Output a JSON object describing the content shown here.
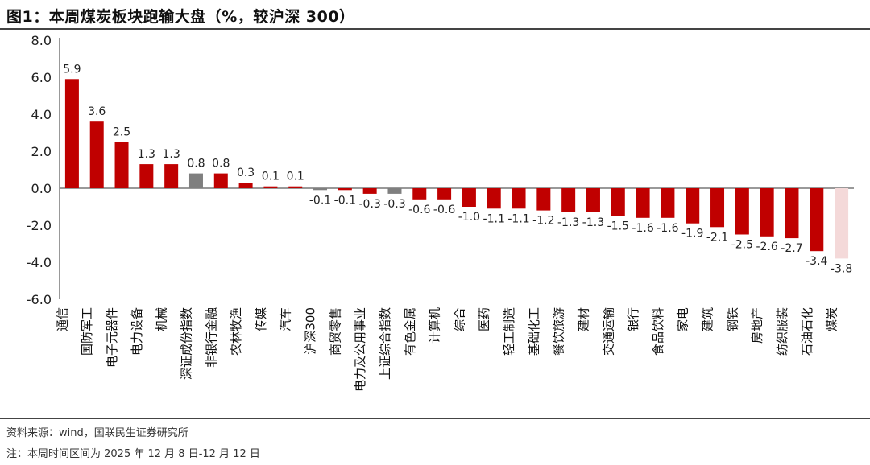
{
  "title": "图1：本周煤炭板块跑输大盘（%，较沪深 300）",
  "source": "资料来源：wind，国联民生证券研究所",
  "note": "注：本周时间区间为 2025 年 12 月 8 日-12 月 12 日",
  "colors": {
    "up": "#c00000",
    "neutral": "#7f7f7f",
    "highlight": "#f4d9d9",
    "axis": "#333333"
  },
  "chart_data": {
    "type": "bar",
    "title": "图1：本周煤炭板块跑输大盘（%，较沪深 300）",
    "xlabel": "",
    "ylabel": "",
    "ylim": [
      -6.0,
      8.0
    ],
    "yticks": [
      "8.0",
      "6.0",
      "4.0",
      "2.0",
      "0.0",
      "-2.0",
      "-4.0",
      "-6.0"
    ],
    "grid": false,
    "categories": [
      "通信",
      "国防军工",
      "电子元器件",
      "电力设备",
      "机械",
      "深证成份指数",
      "非银行金融",
      "农林牧渔",
      "传媒",
      "汽车",
      "沪深300",
      "商贸零售",
      "电力及公用事业",
      "上证综合指数",
      "有色金属",
      "计算机",
      "综合",
      "医药",
      "轻工制造",
      "基础化工",
      "餐饮旅游",
      "建材",
      "交通运输",
      "银行",
      "食品饮料",
      "家电",
      "建筑",
      "钢铁",
      "房地产",
      "纺织服装",
      "石油石化",
      "煤炭"
    ],
    "values": [
      5.9,
      3.6,
      2.5,
      1.3,
      1.3,
      0.8,
      0.8,
      0.3,
      0.1,
      0.1,
      -0.1,
      -0.1,
      -0.3,
      -0.3,
      -0.6,
      -0.6,
      -1.0,
      -1.1,
      -1.1,
      -1.2,
      -1.3,
      -1.3,
      -1.5,
      -1.6,
      -1.6,
      -1.9,
      -2.1,
      -2.5,
      -2.6,
      -2.7,
      -3.4,
      -3.8
    ],
    "labels": [
      "5.9",
      "3.6",
      "2.5",
      "1.3",
      "1.3",
      "0.8",
      "0.8",
      "0.3",
      "0.1",
      "0.1",
      "-0.1",
      "-0.1",
      "-0.3",
      "-0.3",
      "-0.6",
      "-0.6",
      "-1.0",
      "-1.1",
      "-1.1",
      "-1.2",
      "-1.3",
      "-1.3",
      "-1.5",
      "-1.6",
      "-1.6",
      "-1.9",
      "-2.1",
      "-2.5",
      "-2.6",
      "-2.7",
      "-3.4",
      "-3.8"
    ],
    "bar_styles": [
      "up",
      "up",
      "up",
      "up",
      "up",
      "neutral",
      "up",
      "up",
      "up",
      "up",
      "neutral",
      "up",
      "up",
      "neutral",
      "up",
      "up",
      "up",
      "up",
      "up",
      "up",
      "up",
      "up",
      "up",
      "up",
      "up",
      "up",
      "up",
      "up",
      "up",
      "up",
      "up",
      "highlight"
    ]
  }
}
